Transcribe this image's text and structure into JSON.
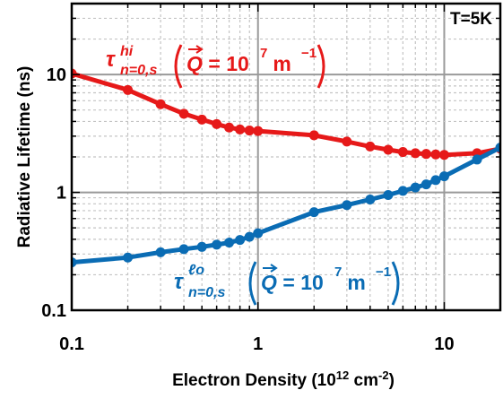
{
  "chart_data": {
    "type": "line",
    "xlabel": "Electron Density (10",
    "xlabel_sup1": "12",
    "xlabel_mid": " cm",
    "xlabel_sup2": "-2",
    "xlabel_end": ")",
    "ylabel": "Radiative Lifetime (ns)",
    "x_scale": "log",
    "y_scale": "log",
    "xlim": [
      0.1,
      20
    ],
    "ylim": [
      0.1,
      40
    ],
    "x_ticks": [
      {
        "value": 0.1,
        "label": "0.1"
      },
      {
        "value": 1,
        "label": "1"
      },
      {
        "value": 10,
        "label": "10"
      }
    ],
    "y_ticks": [
      {
        "value": 0.1,
        "label": "0.1"
      },
      {
        "value": 1,
        "label": "1"
      },
      {
        "value": 10,
        "label": "10"
      }
    ],
    "grid": true,
    "annotation": "T=5K",
    "series": [
      {
        "name": "τ hi n=0,s (Q = 10^7 m^-1)",
        "label_tau": "τ",
        "label_sup": "hi",
        "label_sub": "n=0,s",
        "label_q": "Q",
        "label_eq": " = 10",
        "label_exp": "7",
        "label_unit": " m",
        "label_unit_exp": "−1",
        "color": "#e61919",
        "x": [
          0.1,
          0.2,
          0.3,
          0.4,
          0.5,
          0.6,
          0.7,
          0.8,
          0.9,
          1,
          2,
          3,
          4,
          5,
          6,
          7,
          8,
          9,
          10,
          15,
          20
        ],
        "y": [
          10.2,
          7.4,
          5.6,
          4.65,
          4.15,
          3.8,
          3.55,
          3.42,
          3.35,
          3.32,
          3.05,
          2.7,
          2.45,
          2.3,
          2.2,
          2.15,
          2.12,
          2.1,
          2.08,
          2.15,
          2.35
        ]
      },
      {
        "name": "τ lo n=0,s (Q = 10^7 m^-1)",
        "label_tau": "τ",
        "label_sup": "ℓo",
        "label_sub": "n=0,s",
        "label_q": "Q",
        "label_eq": " = 10",
        "label_exp": "7",
        "label_unit": " m",
        "label_unit_exp": "−1",
        "color": "#0a6cb4",
        "x": [
          0.1,
          0.2,
          0.3,
          0.4,
          0.5,
          0.6,
          0.7,
          0.8,
          0.9,
          1,
          2,
          3,
          4,
          5,
          6,
          7,
          8,
          9,
          10,
          15,
          20
        ],
        "y": [
          0.255,
          0.28,
          0.31,
          0.33,
          0.345,
          0.36,
          0.375,
          0.395,
          0.42,
          0.45,
          0.68,
          0.78,
          0.87,
          0.95,
          1.03,
          1.1,
          1.17,
          1.27,
          1.37,
          1.9,
          2.4
        ]
      }
    ]
  }
}
